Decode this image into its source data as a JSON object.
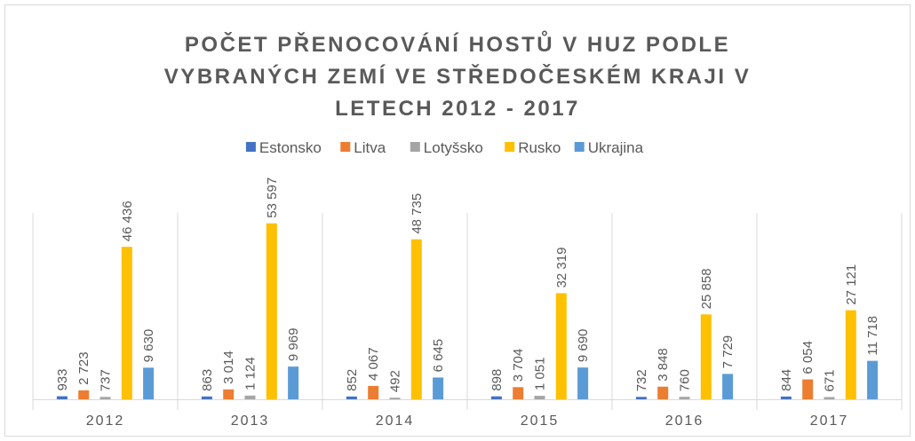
{
  "chart_data": {
    "type": "bar",
    "title": [
      "POČET PŘENOCOVÁNÍ HOSTŮ V HUZ PODLE",
      "VYBRANÝCH ZEMÍ VE STŘEDOČESKÉM KRAJI V",
      "LETECH 2012 - 2017"
    ],
    "categories": [
      "2012",
      "2013",
      "2014",
      "2015",
      "2016",
      "2017"
    ],
    "ylim": [
      0,
      60000
    ],
    "series": [
      {
        "name": "Estonsko",
        "color": "#4472c4",
        "values": [
          933,
          863,
          852,
          898,
          732,
          844
        ],
        "value_labels": [
          "933",
          "863",
          "852",
          "898",
          "732",
          "844"
        ]
      },
      {
        "name": "Litva",
        "color": "#ed7d31",
        "values": [
          2723,
          3014,
          4067,
          3704,
          3848,
          6054
        ],
        "value_labels": [
          "2 723",
          "3 014",
          "4 067",
          "3 704",
          "3 848",
          "6 054"
        ]
      },
      {
        "name": "Lotyšsko",
        "color": "#a5a5a5",
        "values": [
          737,
          1124,
          492,
          1051,
          760,
          671
        ],
        "value_labels": [
          "737",
          "1 124",
          "492",
          "1 051",
          "760",
          "671"
        ]
      },
      {
        "name": "Rusko",
        "color": "#ffc000",
        "values": [
          46436,
          53597,
          48735,
          32319,
          25858,
          27121
        ],
        "value_labels": [
          "46 436",
          "53 597",
          "48 735",
          "32 319",
          "25 858",
          "27 121"
        ]
      },
      {
        "name": "Ukrajina",
        "color": "#5b9bd5",
        "values": [
          9630,
          9969,
          6645,
          9690,
          7729,
          11718
        ],
        "value_labels": [
          "9 630",
          "9 969",
          "6 645",
          "9 690",
          "7 729",
          "11 718"
        ]
      }
    ]
  }
}
